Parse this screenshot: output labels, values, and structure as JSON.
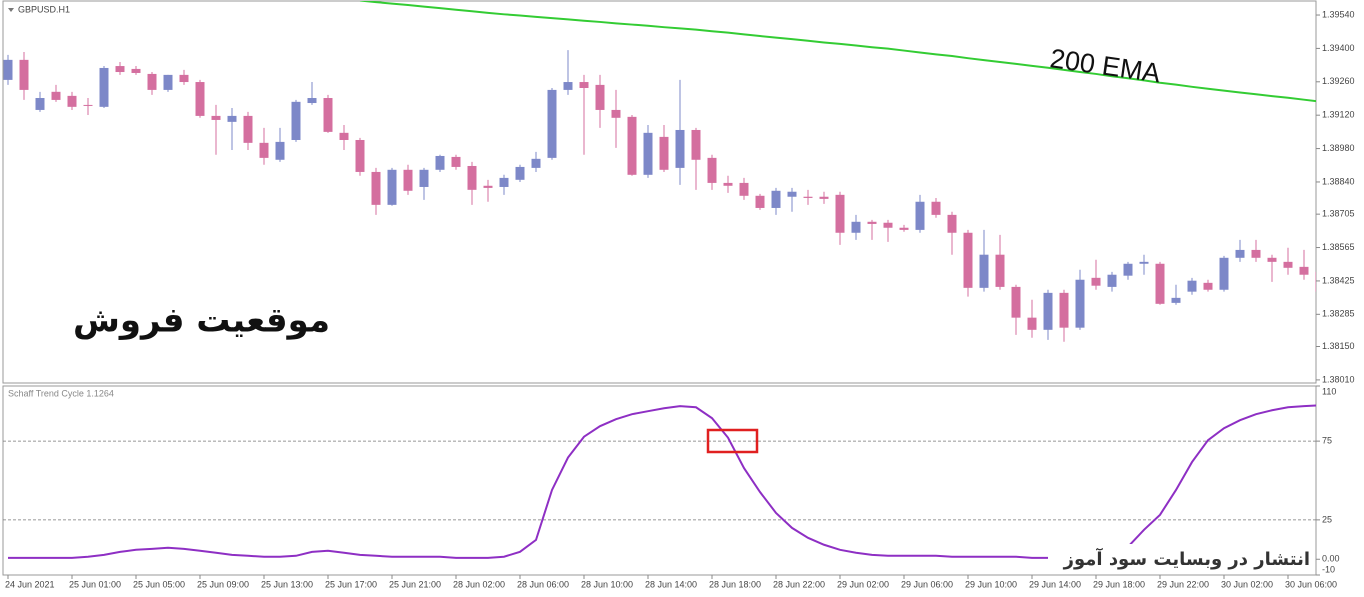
{
  "chart_data": [
    {
      "type": "candlestick",
      "title": "GBPUSD.H1",
      "annotations": [
        "موقعیت فروش"
      ],
      "up_color": "#7d88c8",
      "down_color": "#d46f9f",
      "open": [
        1.39268,
        1.39352,
        1.39142,
        1.39218,
        1.39201,
        1.39163,
        1.39155,
        1.39326,
        1.39314,
        1.39293,
        1.39226,
        1.39289,
        1.39259,
        1.39117,
        1.39092,
        1.39117,
        1.39004,
        1.38933,
        1.39016,
        1.39171,
        1.39192,
        1.39046,
        1.39016,
        1.38882,
        1.38744,
        1.38891,
        1.38819,
        1.38891,
        1.38945,
        1.38907,
        1.38824,
        1.38819,
        1.38849,
        1.38899,
        1.38941,
        1.39226,
        1.39259,
        1.39247,
        1.39142,
        1.39113,
        1.3887,
        1.39029,
        1.38899,
        1.39058,
        1.38941,
        1.38836,
        1.38836,
        1.38782,
        1.38731,
        1.38778,
        1.38778,
        1.38778,
        1.38786,
        1.38627,
        1.38673,
        1.38669,
        1.38648,
        1.38639,
        1.38757,
        1.38702,
        1.38627,
        1.38396,
        1.38535,
        1.384,
        1.38271,
        1.3822,
        1.38375,
        1.38229,
        1.38438,
        1.384,
        1.38447,
        1.38497,
        1.38497,
        1.38333,
        1.3838,
        1.38417,
        1.38388,
        1.38522,
        1.38555,
        1.38522,
        1.38505,
        1.38484,
        1.38463
      ],
      "high": [
        1.39373,
        1.39385,
        1.39218,
        1.39247,
        1.39218,
        1.39192,
        1.39326,
        1.39343,
        1.39326,
        1.39301,
        1.39289,
        1.3931,
        1.39268,
        1.39163,
        1.3915,
        1.39134,
        1.39067,
        1.39067,
        1.39184,
        1.39259,
        1.39205,
        1.39079,
        1.39025,
        1.38899,
        1.38899,
        1.38912,
        1.38899,
        1.38954,
        1.38954,
        1.38924,
        1.38849,
        1.3887,
        1.38912,
        1.38966,
        1.39234,
        1.39393,
        1.39289,
        1.39289,
        1.39226,
        1.39121,
        1.39079,
        1.39079,
        1.39268,
        1.39067,
        1.38954,
        1.38866,
        1.38857,
        1.3879,
        1.38815,
        1.38815,
        1.38807,
        1.38799,
        1.38799,
        1.38702,
        1.38681,
        1.38681,
        1.3866,
        1.38786,
        1.38773,
        1.38715,
        1.38639,
        1.38639,
        1.38618,
        1.38409,
        1.38346,
        1.38388,
        1.38388,
        1.38472,
        1.38514,
        1.38463,
        1.38505,
        1.38535,
        1.38505,
        1.38409,
        1.38438,
        1.3843,
        1.3853,
        1.38597,
        1.38597,
        1.38535,
        1.38564,
        1.38555,
        1.38522
      ],
      "low": [
        1.39247,
        1.39184,
        1.39134,
        1.39176,
        1.39142,
        1.39121,
        1.3915,
        1.39289,
        1.39289,
        1.39205,
        1.39218,
        1.39247,
        1.39109,
        1.38954,
        1.38974,
        1.38974,
        1.38912,
        1.38924,
        1.39008,
        1.39163,
        1.39046,
        1.38974,
        1.38866,
        1.38702,
        1.3874,
        1.38786,
        1.38765,
        1.38882,
        1.38891,
        1.38744,
        1.38757,
        1.38786,
        1.3884,
        1.38882,
        1.38933,
        1.39205,
        1.38954,
        1.39067,
        1.38983,
        1.38866,
        1.38857,
        1.38882,
        1.38828,
        1.38807,
        1.38807,
        1.38794,
        1.38765,
        1.38723,
        1.38702,
        1.38715,
        1.38744,
        1.38748,
        1.38576,
        1.38597,
        1.38597,
        1.38589,
        1.38631,
        1.38627,
        1.3869,
        1.38535,
        1.38359,
        1.3838,
        1.38388,
        1.38199,
        1.38187,
        1.38178,
        1.3817,
        1.3822,
        1.38388,
        1.3838,
        1.3843,
        1.38451,
        1.38325,
        1.38325,
        1.38367,
        1.3838,
        1.3838,
        1.38505,
        1.38505,
        1.38421,
        1.38451,
        1.3843,
        1.38367
      ],
      "close": [
        1.39352,
        1.39226,
        1.39192,
        1.39184,
        1.39155,
        1.39159,
        1.39318,
        1.39301,
        1.39297,
        1.39226,
        1.39289,
        1.39259,
        1.39117,
        1.391,
        1.39117,
        1.39004,
        1.38941,
        1.39008,
        1.39176,
        1.39192,
        1.3905,
        1.39016,
        1.38882,
        1.38744,
        1.38891,
        1.38803,
        1.38891,
        1.38949,
        1.38903,
        1.38807,
        1.38815,
        1.38857,
        1.38903,
        1.38937,
        1.39226,
        1.39259,
        1.39234,
        1.39142,
        1.39109,
        1.3887,
        1.39046,
        1.38891,
        1.39058,
        1.38933,
        1.38836,
        1.38824,
        1.38782,
        1.38731,
        1.38803,
        1.38799,
        1.38773,
        1.38769,
        1.38627,
        1.38673,
        1.38664,
        1.38648,
        1.38639,
        1.38757,
        1.38702,
        1.38627,
        1.38396,
        1.38535,
        1.384,
        1.38271,
        1.3822,
        1.38375,
        1.38229,
        1.3843,
        1.38405,
        1.38451,
        1.38497,
        1.38505,
        1.38329,
        1.38354,
        1.38426,
        1.38388,
        1.38522,
        1.38555,
        1.38522,
        1.38505,
        1.3848,
        1.38451,
        1.3838
      ],
      "series": [
        {
          "name": "200 EMA",
          "color": "#33cc33",
          "values": [
            null,
            null,
            null,
            null,
            null,
            null,
            null,
            null,
            null,
            null,
            null,
            null,
            null,
            null,
            null,
            null,
            null,
            null,
            null,
            null,
            null,
            null,
            1.39601,
            1.39594,
            1.39588,
            1.39582,
            1.39575,
            1.39569,
            1.39562,
            1.39556,
            1.39549,
            1.39543,
            1.39538,
            1.39532,
            1.39527,
            1.39522,
            1.39516,
            1.39511,
            1.39505,
            1.395,
            1.39495,
            1.39489,
            1.39484,
            1.39479,
            1.39472,
            1.39466,
            1.39459,
            1.39452,
            1.39445,
            1.39439,
            1.39432,
            1.39425,
            1.39419,
            1.39412,
            1.39405,
            1.39399,
            1.39391,
            1.39383,
            1.39375,
            1.39368,
            1.39359,
            1.39351,
            1.39343,
            1.39335,
            1.39327,
            1.39319,
            1.3931,
            1.39301,
            1.39293,
            1.39283,
            1.39275,
            1.39266,
            1.39256,
            1.39248,
            1.39239,
            1.39231,
            1.39223,
            1.39215,
            1.39208,
            1.392,
            1.39193,
            1.39185,
            1.39177
          ]
        }
      ],
      "ylim": [
        1.37997,
        1.39603
      ],
      "yticks": [
        {
          "value": 1.3954,
          "label": "1.39540"
        },
        {
          "value": 1.394,
          "label": "1.39400"
        },
        {
          "value": 1.3926,
          "label": "1.39260"
        },
        {
          "value": 1.3912,
          "label": "1.39120"
        },
        {
          "value": 1.3898,
          "label": "1.38980"
        },
        {
          "value": 1.3884,
          "label": "1.38840"
        },
        1.38705,
        1.38565,
        1.38425,
        1.38285,
        {
          "value": 1.3815,
          "label": "1.38150"
        },
        {
          "value": 1.3801,
          "label": "1.38010"
        }
      ]
    },
    {
      "type": "line",
      "title": "Schaff Trend Cycle 1.1264",
      "color": "#8e2fc4",
      "values": [
        0.9,
        0.9,
        0.9,
        0.9,
        0.9,
        1.6,
        2.8,
        4.7,
        6.0,
        6.6,
        7.3,
        6.6,
        5.4,
        4.1,
        2.8,
        2.2,
        1.6,
        1.6,
        2.2,
        4.7,
        5.4,
        4.1,
        2.8,
        2.2,
        1.6,
        1.6,
        1.6,
        1.6,
        0.9,
        0.9,
        0.9,
        1.6,
        4.7,
        12.3,
        44.0,
        64.6,
        77.8,
        84.5,
        88.9,
        92.1,
        94.0,
        95.9,
        97.2,
        96.5,
        89.6,
        77.2,
        57.9,
        42.7,
        29.4,
        19.9,
        13.6,
        9.2,
        6.0,
        4.1,
        2.8,
        2.2,
        2.2,
        2.2,
        2.2,
        1.6,
        1.6,
        1.6,
        1.6,
        1.6,
        0.9,
        0.9,
        null,
        null,
        null,
        null,
        7.9,
        18.7,
        28.2,
        44.0,
        61.7,
        75.6,
        83.2,
        88.3,
        92.1,
        94.6,
        96.5,
        97.2,
        97.8
      ],
      "ylim": [
        -10,
        110
      ],
      "yticks": [
        110,
        75,
        25,
        {
          "value": 0,
          "label": "0.00"
        },
        -10
      ],
      "levels": [
        75,
        25
      ],
      "x_labels": [
        "24 Jun 2021",
        "25 Jun 01:00",
        "25 Jun 05:00",
        "25 Jun 09:00",
        "25 Jun 13:00",
        "25 Jun 17:00",
        "25 Jun 21:00",
        "28 Jun 02:00",
        "28 Jun 06:00",
        "28 Jun 10:00",
        "28 Jun 14:00",
        "28 Jun 18:00",
        "28 Jun 22:00",
        "29 Jun 02:00",
        "29 Jun 06:00",
        "29 Jun 10:00",
        "29 Jun 14:00",
        "29 Jun 18:00",
        "29 Jun 22:00",
        "30 Jun 02:00",
        "30 Jun 06:00"
      ]
    }
  ],
  "watermark": "انتشار در وبسایت سود آموز"
}
